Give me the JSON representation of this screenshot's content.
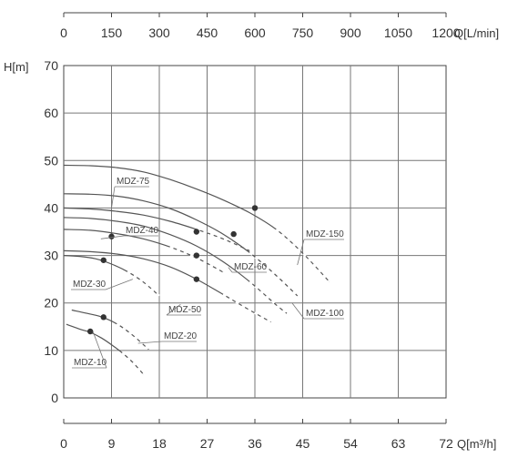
{
  "chart_data": {
    "type": "line",
    "xlabel_bottom": "Q[m³/h]",
    "xlabel_top": "Q[L/min]",
    "ylabel": "H[m]",
    "xlim": [
      0,
      72
    ],
    "ylim": [
      0,
      70
    ],
    "grid": true,
    "x_ticks_bottom": [
      "0",
      "9",
      "18",
      "27",
      "36",
      "45",
      "54",
      "63",
      "72"
    ],
    "x_ticks_top": [
      "0",
      "150",
      "300",
      "450",
      "600",
      "750",
      "900",
      "1050",
      "1200"
    ],
    "y_ticks": [
      "0",
      "10",
      "20",
      "30",
      "40",
      "50",
      "60",
      "70"
    ],
    "series": [
      {
        "name": "MDZ-10",
        "x": [
          0.5,
          3,
          5,
          7,
          9,
          11,
          13,
          15
        ],
        "y": [
          15.5,
          14.5,
          13.8,
          12.7,
          11.2,
          9.5,
          7.5,
          5
        ],
        "label_anchor": [
          5.5,
          14
        ],
        "rated_point": [
          5,
          14
        ]
      },
      {
        "name": "MDZ-20",
        "x": [
          1.5,
          4,
          7,
          10,
          13,
          16
        ],
        "y": [
          18.5,
          17.9,
          17.1,
          15.6,
          13.2,
          10.2
        ],
        "label_anchor": [
          14,
          11.5
        ],
        "rated_point": [
          7.5,
          17
        ]
      },
      {
        "name": "MDZ-30",
        "x": [
          0,
          3,
          6,
          9,
          12,
          15,
          18
        ],
        "y": [
          30,
          29.8,
          29.3,
          28.2,
          26.6,
          24.4,
          21.5
        ],
        "label_anchor": [
          13,
          25
        ],
        "rated_point": [
          7.5,
          29
        ]
      },
      {
        "name": "MDZ-40",
        "x": [
          0,
          5,
          10,
          15,
          20,
          25,
          30
        ],
        "y": [
          35.5,
          35.3,
          34.6,
          33.5,
          31.8,
          29.5,
          26.5
        ],
        "label_anchor": [
          7,
          33.5
        ],
        "rated_point": [
          9,
          34
        ]
      },
      {
        "name": "MDZ-50",
        "x": [
          0,
          5,
          10,
          15,
          20,
          25,
          30,
          35,
          39
        ],
        "y": [
          31,
          30.8,
          30.3,
          29.3,
          27.6,
          25,
          21.8,
          18.5,
          16
        ],
        "label_anchor": [
          22,
          19.7
        ],
        "rated_point": [
          25,
          25
        ]
      },
      {
        "name": "MDZ-60",
        "x": [
          0,
          5,
          10,
          15,
          20,
          25,
          30,
          35,
          40,
          42
        ],
        "y": [
          38,
          37.8,
          37.2,
          36.2,
          34.4,
          32,
          28.7,
          24.5,
          19.6,
          17.8
        ],
        "label_anchor": [
          31,
          27.5
        ],
        "rated_point": [
          25,
          30
        ]
      },
      {
        "name": "MDZ-75",
        "x": [
          0,
          5,
          10,
          15,
          20,
          25,
          30,
          35
        ],
        "y": [
          40,
          39.8,
          39.3,
          38.5,
          37.2,
          35.5,
          33.5,
          31
        ],
        "label_anchor": [
          9,
          40
        ],
        "rated_point": [
          25,
          35
        ]
      },
      {
        "name": "MDZ-100",
        "x": [
          0,
          5,
          10,
          15,
          20,
          25,
          30,
          35,
          40,
          44
        ],
        "y": [
          43,
          42.9,
          42.5,
          41.5,
          39.9,
          37.5,
          34.5,
          30.6,
          25.8,
          21.5
        ],
        "label_anchor": [
          43,
          20
        ],
        "rated_point": [
          32,
          34.5
        ]
      },
      {
        "name": "MDZ-150",
        "x": [
          0,
          5,
          10,
          15,
          20,
          25,
          30,
          35,
          40,
          45,
          50
        ],
        "y": [
          49,
          48.9,
          48.5,
          47.6,
          46,
          44,
          41.7,
          39,
          35.5,
          30.5,
          24.5
        ],
        "label_anchor": [
          44,
          28
        ],
        "rated_point": [
          36,
          40
        ]
      }
    ],
    "labels": [
      {
        "series": "MDZ-75",
        "text": "MDZ-75"
      },
      {
        "series": "MDZ-40",
        "text": "MDZ-40"
      },
      {
        "series": "MDZ-150",
        "text": "MDZ-150"
      },
      {
        "series": "MDZ-60",
        "text": "MDZ-60"
      },
      {
        "series": "MDZ-30",
        "text": "MDZ-30"
      },
      {
        "series": "MDZ-50",
        "text": "MDZ-50"
      },
      {
        "series": "MDZ-100",
        "text": "MDZ-100"
      },
      {
        "series": "MDZ-20",
        "text": "MDZ-20"
      },
      {
        "series": "MDZ-10",
        "text": "MDZ-10"
      }
    ]
  }
}
